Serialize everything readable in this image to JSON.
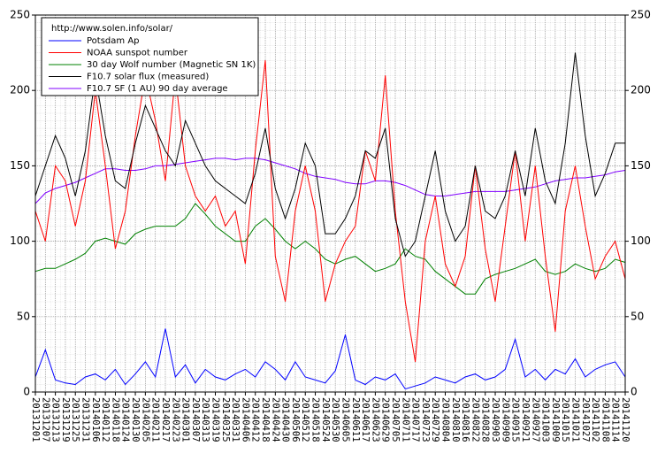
{
  "chart_data": {
    "type": "line",
    "legend_title": "http://www.solen.info/solar/",
    "legend": "upper left",
    "grid": true,
    "categories": [
      "20131201",
      "20131207",
      "20131213",
      "20131219",
      "20131225",
      "20131231",
      "20140106",
      "20140112",
      "20140118",
      "20140124",
      "20140130",
      "20140205",
      "20140211",
      "20140217",
      "20140223",
      "20140301",
      "20140307",
      "20140313",
      "20140319",
      "20140325",
      "20140331",
      "20140406",
      "20140412",
      "20140418",
      "20140424",
      "20140430",
      "20140506",
      "20140512",
      "20140518",
      "20140524",
      "20140530",
      "20140605",
      "20140611",
      "20140617",
      "20140623",
      "20140629",
      "20140705",
      "20140711",
      "20140717",
      "20140723",
      "20140729",
      "20140804",
      "20140810",
      "20140816",
      "20140822",
      "20140828",
      "20140903",
      "20140909",
      "20140915",
      "20140921",
      "20140927",
      "20141003",
      "20141009",
      "20141015",
      "20141021",
      "20141027",
      "20141102",
      "20141108",
      "20141114",
      "20141120"
    ],
    "series": [
      {
        "name": "Potsdam Ap",
        "color": "#0000ff",
        "values": [
          10,
          28,
          8,
          6,
          5,
          10,
          12,
          8,
          15,
          5,
          12,
          20,
          10,
          42,
          10,
          18,
          6,
          15,
          10,
          8,
          12,
          15,
          10,
          20,
          15,
          8,
          20,
          10,
          8,
          6,
          14,
          38,
          8,
          5,
          10,
          8,
          12,
          2,
          4,
          6,
          10,
          8,
          6,
          10,
          12,
          8,
          10,
          15,
          35,
          10,
          15,
          8,
          15,
          12,
          22,
          10,
          15,
          18,
          20,
          10
        ]
      },
      {
        "name": "NOAA sunspot number",
        "color": "#ff0000",
        "values": [
          120,
          100,
          150,
          140,
          110,
          140,
          200,
          150,
          95,
          120,
          170,
          210,
          180,
          140,
          210,
          150,
          130,
          120,
          130,
          110,
          120,
          85,
          160,
          220,
          90,
          60,
          120,
          150,
          120,
          60,
          85,
          100,
          110,
          160,
          140,
          210,
          120,
          60,
          20,
          100,
          130,
          85,
          70,
          90,
          150,
          95,
          60,
          110,
          160,
          100,
          150,
          90,
          40,
          120,
          150,
          110,
          75,
          90,
          100,
          75
        ]
      },
      {
        "name": "30 day Wolf number (Magnetic SN 1K)",
        "color": "#008000",
        "values": [
          80,
          82,
          82,
          85,
          88,
          92,
          100,
          102,
          100,
          98,
          105,
          108,
          110,
          110,
          110,
          115,
          125,
          118,
          110,
          105,
          100,
          100,
          110,
          115,
          108,
          100,
          95,
          100,
          95,
          88,
          85,
          88,
          90,
          85,
          80,
          82,
          85,
          95,
          90,
          88,
          80,
          75,
          70,
          65,
          65,
          75,
          78,
          80,
          82,
          85,
          88,
          80,
          78,
          80,
          85,
          82,
          80,
          82,
          88,
          86
        ]
      },
      {
        "name": "F10.7 solar flux (measured)",
        "color": "#000000",
        "values": [
          130,
          150,
          170,
          155,
          130,
          160,
          210,
          170,
          140,
          135,
          165,
          190,
          175,
          160,
          150,
          180,
          165,
          150,
          140,
          135,
          130,
          125,
          145,
          175,
          135,
          115,
          135,
          165,
          150,
          105,
          105,
          115,
          130,
          160,
          155,
          175,
          115,
          90,
          100,
          130,
          160,
          120,
          100,
          110,
          150,
          120,
          115,
          130,
          160,
          130,
          175,
          140,
          125,
          165,
          225,
          170,
          130,
          145,
          165,
          165
        ]
      },
      {
        "name": "F10.7 SF (1 AU) 90 day average",
        "color": "#8000ff",
        "values": [
          125,
          132,
          135,
          137,
          139,
          142,
          145,
          148,
          148,
          147,
          147,
          148,
          150,
          150,
          151,
          152,
          153,
          154,
          155,
          155,
          154,
          155,
          155,
          154,
          152,
          150,
          148,
          145,
          143,
          142,
          141,
          139,
          138,
          138,
          140,
          140,
          139,
          137,
          134,
          131,
          130,
          130,
          131,
          132,
          133,
          133,
          133,
          133,
          134,
          135,
          136,
          138,
          140,
          141,
          142,
          142,
          143,
          144,
          146,
          147
        ]
      }
    ],
    "ylim": [
      0,
      250
    ],
    "yticks": [
      0,
      50,
      100,
      150,
      200,
      250
    ],
    "y2lim": [
      0,
      250
    ],
    "y2ticks": [
      0,
      50,
      100,
      150,
      200,
      250
    ]
  }
}
